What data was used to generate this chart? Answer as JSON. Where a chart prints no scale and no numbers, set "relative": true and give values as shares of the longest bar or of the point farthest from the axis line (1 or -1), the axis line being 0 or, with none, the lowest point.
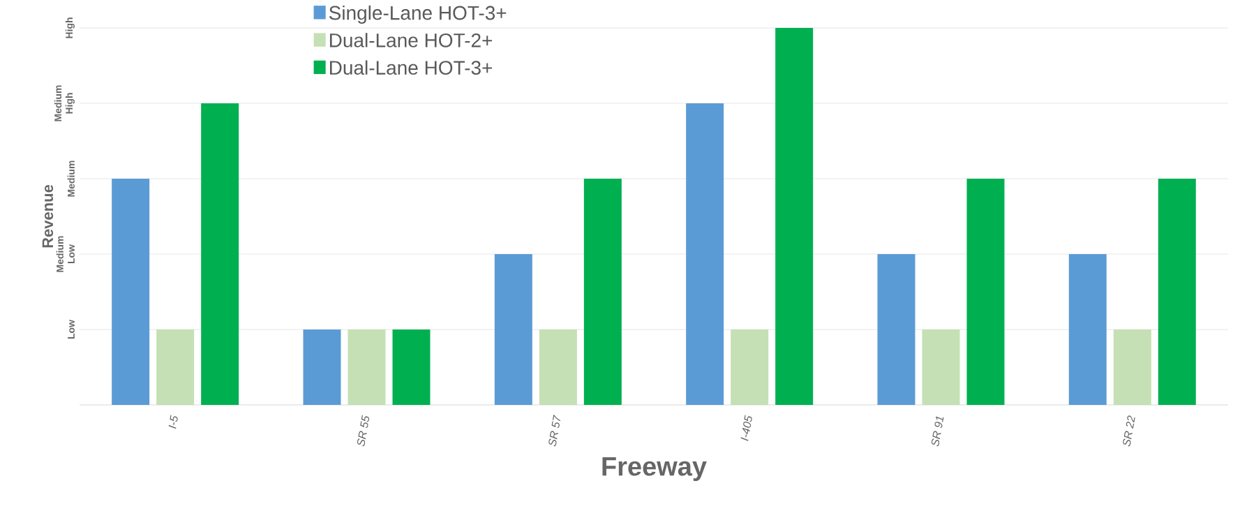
{
  "chart_data": {
    "type": "bar",
    "xlabel": "Freeway",
    "ylabel": "Revenue",
    "relative": true,
    "categories": [
      "I-5",
      "SR 55",
      "SR 57",
      "I-405",
      "SR 91",
      "SR 22"
    ],
    "series": [
      {
        "name": "Single-Lane HOT-3+",
        "color": "#5b9bd5",
        "values": [
          0.6,
          0.2,
          0.4,
          0.8,
          0.4,
          0.4
        ]
      },
      {
        "name": "Dual-Lane HOT-2+",
        "color": "#c5e0b4",
        "values": [
          0.2,
          0.2,
          0.2,
          0.2,
          0.2,
          0.2
        ]
      },
      {
        "name": "Dual-Lane HOT-3+",
        "color": "#00b050",
        "values": [
          0.8,
          0.2,
          0.6,
          1,
          0.6,
          0.6
        ]
      }
    ],
    "annotations": [
      "Low",
      "Medium Low",
      "Medium",
      "Medium High",
      "High"
    ],
    "grid": "y",
    "legend": "top left"
  }
}
